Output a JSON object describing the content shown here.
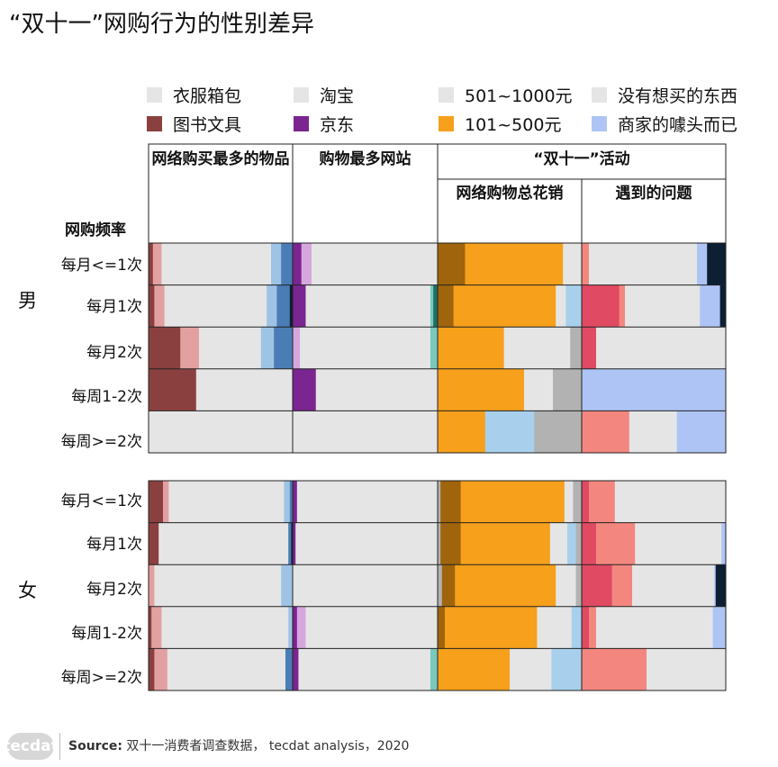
{
  "title": "“双十一”网购行为的性别差异",
  "legend": [
    {
      "label": "衣服箱包",
      "color": "#e5e5e5"
    },
    {
      "label": "淘宝",
      "color": "#e5e5e5"
    },
    {
      "label": "501~1000元",
      "color": "#e5e5e5"
    },
    {
      "label": "没有想买的东西",
      "color": "#e5e5e5"
    },
    {
      "label": "图书文具",
      "color": "#8b4040"
    },
    {
      "label": "京东",
      "color": "#7b2590"
    },
    {
      "label": "101~500元",
      "color": "#f6a01b"
    },
    {
      "label": "商家的噱头而已",
      "color": "#aec4f5"
    }
  ],
  "headers": {
    "col1": "网络购买最多的物品",
    "col2": "购物最多网站",
    "activity": "“双十一”活动",
    "col3": "网络购物总花销",
    "col4": "遇到的问题",
    "y_axis": "网购频率"
  },
  "groups": [
    "男",
    "女"
  ],
  "rows": [
    "每月<=1次",
    "每月1次",
    "每月2次",
    "每周1-2次",
    "每周>=2次"
  ],
  "footer": {
    "logo": "tecdat",
    "source_label": "Source:",
    "source_text": "双十一消费者调查数据，  tecdat analysis，2020"
  },
  "chart_data": {
    "type": "bar",
    "subtype": "stacked-percent-horizontal",
    "title": "“双十一”网购行为的性别差异",
    "panels": [
      "网络购买最多的物品",
      "购物最多网站",
      "网络购物总花销",
      "遇到的问题"
    ],
    "groups": [
      "男",
      "女"
    ],
    "categories": [
      "每月<=1次",
      "每月1次",
      "每月2次",
      "每周1-2次",
      "每周>=2次"
    ],
    "values_unit": "percent of respondents (each bar sums to 100)",
    "series": [
      {
        "group": "男",
        "panel": "网络购买最多的物品",
        "values": [
          [
            [
              3,
              "#8b4040"
            ],
            [
              6,
              "#e3a0a0"
            ],
            [
              76,
              "#e5e5e5"
            ],
            [
              7,
              "#9fc3e4"
            ],
            [
              8,
              "#4a7db5"
            ]
          ],
          [
            [
              4,
              "#8b4040"
            ],
            [
              7,
              "#e3a0a0"
            ],
            [
              71,
              "#e5e5e5"
            ],
            [
              7,
              "#9fc3e4"
            ],
            [
              9,
              "#4a7db5"
            ],
            [
              2,
              "#0d1f33"
            ]
          ],
          [
            [
              22,
              "#8b4040"
            ],
            [
              13,
              "#e3a0a0"
            ],
            [
              43,
              "#e5e5e5"
            ],
            [
              9,
              "#9fc3e4"
            ],
            [
              13,
              "#4a7db5"
            ]
          ],
          [
            [
              33,
              "#8b4040"
            ],
            [
              67,
              "#e5e5e5"
            ]
          ],
          [
            [
              100,
              "#e5e5e5"
            ]
          ]
        ]
      },
      {
        "group": "男",
        "panel": "购物最多网站",
        "values": [
          [
            [
              6,
              "#7b2590"
            ],
            [
              7,
              "#d6a6de"
            ],
            [
              87,
              "#e5e5e5"
            ]
          ],
          [
            [
              9,
              "#7b2590"
            ],
            [
              86,
              "#e5e5e5"
            ],
            [
              2,
              "#7ac8be"
            ],
            [
              3,
              "#1f6f67"
            ]
          ],
          [
            [
              5,
              "#d6a6de"
            ],
            [
              90,
              "#e5e5e5"
            ],
            [
              5,
              "#7ac8be"
            ]
          ],
          [
            [
              16,
              "#7b2590"
            ],
            [
              84,
              "#e5e5e5"
            ]
          ],
          [
            [
              100,
              "#e5e5e5"
            ]
          ]
        ]
      },
      {
        "group": "男",
        "panel": "网络购物总花销",
        "values": [
          [
            [
              19,
              "#a0640c"
            ],
            [
              68,
              "#f6a01b"
            ],
            [
              13,
              "#e5e5e5"
            ]
          ],
          [
            [
              11,
              "#a0640c"
            ],
            [
              71,
              "#f6a01b"
            ],
            [
              7,
              "#e5e5e5"
            ],
            [
              11,
              "#a8d0ec"
            ]
          ],
          [
            [
              46,
              "#f6a01b"
            ],
            [
              46,
              "#e5e5e5"
            ],
            [
              8,
              "#b2b2b2"
            ]
          ],
          [
            [
              60,
              "#f6a01b"
            ],
            [
              20,
              "#e5e5e5"
            ],
            [
              20,
              "#b2b2b2"
            ]
          ],
          [
            [
              33,
              "#f6a01b"
            ],
            [
              34,
              "#a8d0ec"
            ],
            [
              33,
              "#b2b2b2"
            ]
          ]
        ]
      },
      {
        "group": "男",
        "panel": "遇到的问题",
        "values": [
          [
            [
              5,
              "#f3877f"
            ],
            [
              75,
              "#e5e5e5"
            ],
            [
              7,
              "#aec4f5"
            ],
            [
              13,
              "#0d1f33"
            ]
          ],
          [
            [
              26,
              "#e04a62"
            ],
            [
              4,
              "#f3877f"
            ],
            [
              52,
              "#e5e5e5"
            ],
            [
              14,
              "#aec4f5"
            ],
            [
              4,
              "#0d1f33"
            ]
          ],
          [
            [
              10,
              "#e04a62"
            ],
            [
              90,
              "#e5e5e5"
            ]
          ],
          [
            [
              100,
              "#aec4f5"
            ]
          ],
          [
            [
              33,
              "#f3877f"
            ],
            [
              33,
              "#e5e5e5"
            ],
            [
              34,
              "#aec4f5"
            ]
          ]
        ]
      },
      {
        "group": "女",
        "panel": "网络购买最多的物品",
        "values": [
          [
            [
              10,
              "#8b4040"
            ],
            [
              4,
              "#e3a0a0"
            ],
            [
              80,
              "#e5e5e5"
            ],
            [
              4,
              "#9fc3e4"
            ],
            [
              2,
              "#4a7db5"
            ]
          ],
          [
            [
              7,
              "#8b4040"
            ],
            [
              90,
              "#e5e5e5"
            ],
            [
              2,
              "#4a7db5"
            ],
            [
              1,
              "#0d1f33"
            ]
          ],
          [
            [
              4,
              "#e3a0a0"
            ],
            [
              88,
              "#e5e5e5"
            ],
            [
              8,
              "#9fc3e4"
            ]
          ],
          [
            [
              2,
              "#8b4040"
            ],
            [
              7,
              "#e3a0a0"
            ],
            [
              88,
              "#e5e5e5"
            ],
            [
              3,
              "#9fc3e4"
            ]
          ],
          [
            [
              4,
              "#8b4040"
            ],
            [
              9,
              "#e3a0a0"
            ],
            [
              82,
              "#e5e5e5"
            ],
            [
              5,
              "#4a7db5"
            ]
          ]
        ]
      },
      {
        "group": "女",
        "panel": "购物最多网站",
        "values": [
          [
            [
              3,
              "#7b2590"
            ],
            [
              97,
              "#e5e5e5"
            ]
          ],
          [
            [
              2,
              "#7b2590"
            ],
            [
              98,
              "#e5e5e5"
            ]
          ],
          [
            [
              100,
              "#e5e5e5"
            ]
          ],
          [
            [
              3,
              "#7b2590"
            ],
            [
              6,
              "#d6a6de"
            ],
            [
              91,
              "#e5e5e5"
            ]
          ],
          [
            [
              4,
              "#7b2590"
            ],
            [
              91,
              "#e5e5e5"
            ],
            [
              5,
              "#7ac8be"
            ]
          ]
        ]
      },
      {
        "group": "女",
        "panel": "网络购物总花销",
        "values": [
          [
            [
              2,
              "#b2b2b2"
            ],
            [
              14,
              "#a0640c"
            ],
            [
              72,
              "#f6a01b"
            ],
            [
              6,
              "#e5e5e5"
            ],
            [
              6,
              "#b2b2b2"
            ]
          ],
          [
            [
              2,
              "#b2b2b2"
            ],
            [
              14,
              "#a0640c"
            ],
            [
              62,
              "#f6a01b"
            ],
            [
              12,
              "#e5e5e5"
            ],
            [
              6,
              "#a8d0ec"
            ],
            [
              4,
              "#b2b2b2"
            ]
          ],
          [
            [
              3,
              "#b2b2b2"
            ],
            [
              9,
              "#a0640c"
            ],
            [
              70,
              "#f6a01b"
            ],
            [
              14,
              "#e5e5e5"
            ],
            [
              4,
              "#b2b2b2"
            ]
          ],
          [
            [
              5,
              "#a0640c"
            ],
            [
              64,
              "#f6a01b"
            ],
            [
              24,
              "#e5e5e5"
            ],
            [
              7,
              "#a8d0ec"
            ]
          ],
          [
            [
              50,
              "#f6a01b"
            ],
            [
              29,
              "#e5e5e5"
            ],
            [
              21,
              "#a8d0ec"
            ]
          ]
        ]
      },
      {
        "group": "女",
        "panel": "遇到的问题",
        "values": [
          [
            [
              5,
              "#e04a62"
            ],
            [
              18,
              "#f3877f"
            ],
            [
              77,
              "#e5e5e5"
            ]
          ],
          [
            [
              10,
              "#e04a62"
            ],
            [
              27,
              "#f3877f"
            ],
            [
              60,
              "#e5e5e5"
            ],
            [
              3,
              "#aec4f5"
            ]
          ],
          [
            [
              21,
              "#e04a62"
            ],
            [
              14,
              "#f3877f"
            ],
            [
              57,
              "#e5e5e5"
            ],
            [
              1,
              "#aec4f5"
            ],
            [
              7,
              "#0d1f33"
            ]
          ],
          [
            [
              5,
              "#e04a62"
            ],
            [
              5,
              "#f3877f"
            ],
            [
              81,
              "#e5e5e5"
            ],
            [
              9,
              "#aec4f5"
            ]
          ],
          [
            [
              45,
              "#f3877f"
            ],
            [
              55,
              "#e5e5e5"
            ]
          ]
        ]
      }
    ]
  }
}
